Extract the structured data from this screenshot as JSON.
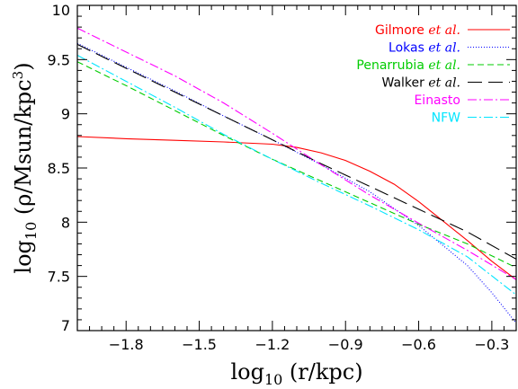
{
  "chart_data": {
    "type": "line",
    "xlabel": "log10 (r/kpc)",
    "ylabel": "log10 (ρ/Msun/kpc3)",
    "xlim": [
      -2.0,
      -0.2
    ],
    "ylim": [
      7,
      10
    ],
    "xticks": [
      -1.8,
      -1.5,
      -1.2,
      -0.9,
      -0.6,
      -0.3
    ],
    "xtick_labels": [
      "−1.8",
      "−1.5",
      "−1.2",
      "−0.9",
      "−0.6",
      "−0.3"
    ],
    "yticks": [
      7,
      7.5,
      8,
      8.5,
      9,
      9.5,
      10
    ],
    "ytick_labels": [
      "7",
      "7.5",
      "8",
      "8.5",
      "9",
      "9.5",
      "10"
    ],
    "grid": false,
    "legend_position": "top-right",
    "series": [
      {
        "name": "Gilmore et al.",
        "legend_main": "Gilmore",
        "legend_italic": "et al.",
        "color": "#ff0000",
        "dash": "",
        "x": [
          -2.0,
          -1.8,
          -1.6,
          -1.4,
          -1.2,
          -1.1,
          -1.0,
          -0.9,
          -0.8,
          -0.7,
          -0.6,
          -0.5,
          -0.4,
          -0.3,
          -0.2
        ],
        "y": [
          8.79,
          8.77,
          8.755,
          8.74,
          8.72,
          8.69,
          8.64,
          8.57,
          8.47,
          8.35,
          8.19,
          8.01,
          7.83,
          7.64,
          7.47
        ]
      },
      {
        "name": "Lokas et al.",
        "legend_main": "Lokas",
        "legend_italic": "et al.",
        "color": "#0000ff",
        "dash": "1,2",
        "x": [
          -2.0,
          -1.8,
          -1.6,
          -1.4,
          -1.2,
          -1.0,
          -0.8,
          -0.6,
          -0.4,
          -0.3,
          -0.2
        ],
        "y": [
          9.65,
          9.43,
          9.21,
          8.98,
          8.76,
          8.53,
          8.28,
          7.97,
          7.6,
          7.35,
          7.07
        ]
      },
      {
        "name": "Penarrubia et al.",
        "legend_main": "Penarrubia",
        "legend_italic": "et al.",
        "color": "#00cc00",
        "dash": "7,4",
        "x": [
          -2.0,
          -1.8,
          -1.6,
          -1.4,
          -1.2,
          -1.0,
          -0.8,
          -0.6,
          -0.4,
          -0.2
        ],
        "y": [
          9.48,
          9.26,
          9.03,
          8.8,
          8.58,
          8.38,
          8.18,
          7.98,
          7.8,
          7.58
        ]
      },
      {
        "name": "Walker et al.",
        "legend_main": "Walker",
        "legend_italic": "et al.",
        "color": "#000000",
        "dash": "16,7",
        "x": [
          -2.0,
          -1.8,
          -1.6,
          -1.4,
          -1.2,
          -1.0,
          -0.8,
          -0.6,
          -0.4,
          -0.2
        ],
        "y": [
          9.64,
          9.42,
          9.2,
          8.98,
          8.76,
          8.54,
          8.33,
          8.12,
          7.91,
          7.66
        ]
      },
      {
        "name": "Einasto",
        "legend_main": "Einasto",
        "legend_italic": "",
        "color": "#ff00ff",
        "dash": "10,3,2,3",
        "x": [
          -2.0,
          -1.8,
          -1.6,
          -1.4,
          -1.2,
          -1.0,
          -0.8,
          -0.6,
          -0.4,
          -0.2
        ],
        "y": [
          9.79,
          9.57,
          9.35,
          9.1,
          8.82,
          8.53,
          8.25,
          7.99,
          7.74,
          7.47
        ]
      },
      {
        "name": "NFW",
        "legend_main": "NFW",
        "legend_italic": "",
        "color": "#00e5ff",
        "dash": "10,3,2,3",
        "x": [
          -2.0,
          -1.8,
          -1.6,
          -1.4,
          -1.2,
          -1.0,
          -0.8,
          -0.6,
          -0.4,
          -0.2
        ],
        "y": [
          9.54,
          9.3,
          9.06,
          8.81,
          8.58,
          8.36,
          8.15,
          7.93,
          7.68,
          7.33
        ]
      }
    ]
  }
}
